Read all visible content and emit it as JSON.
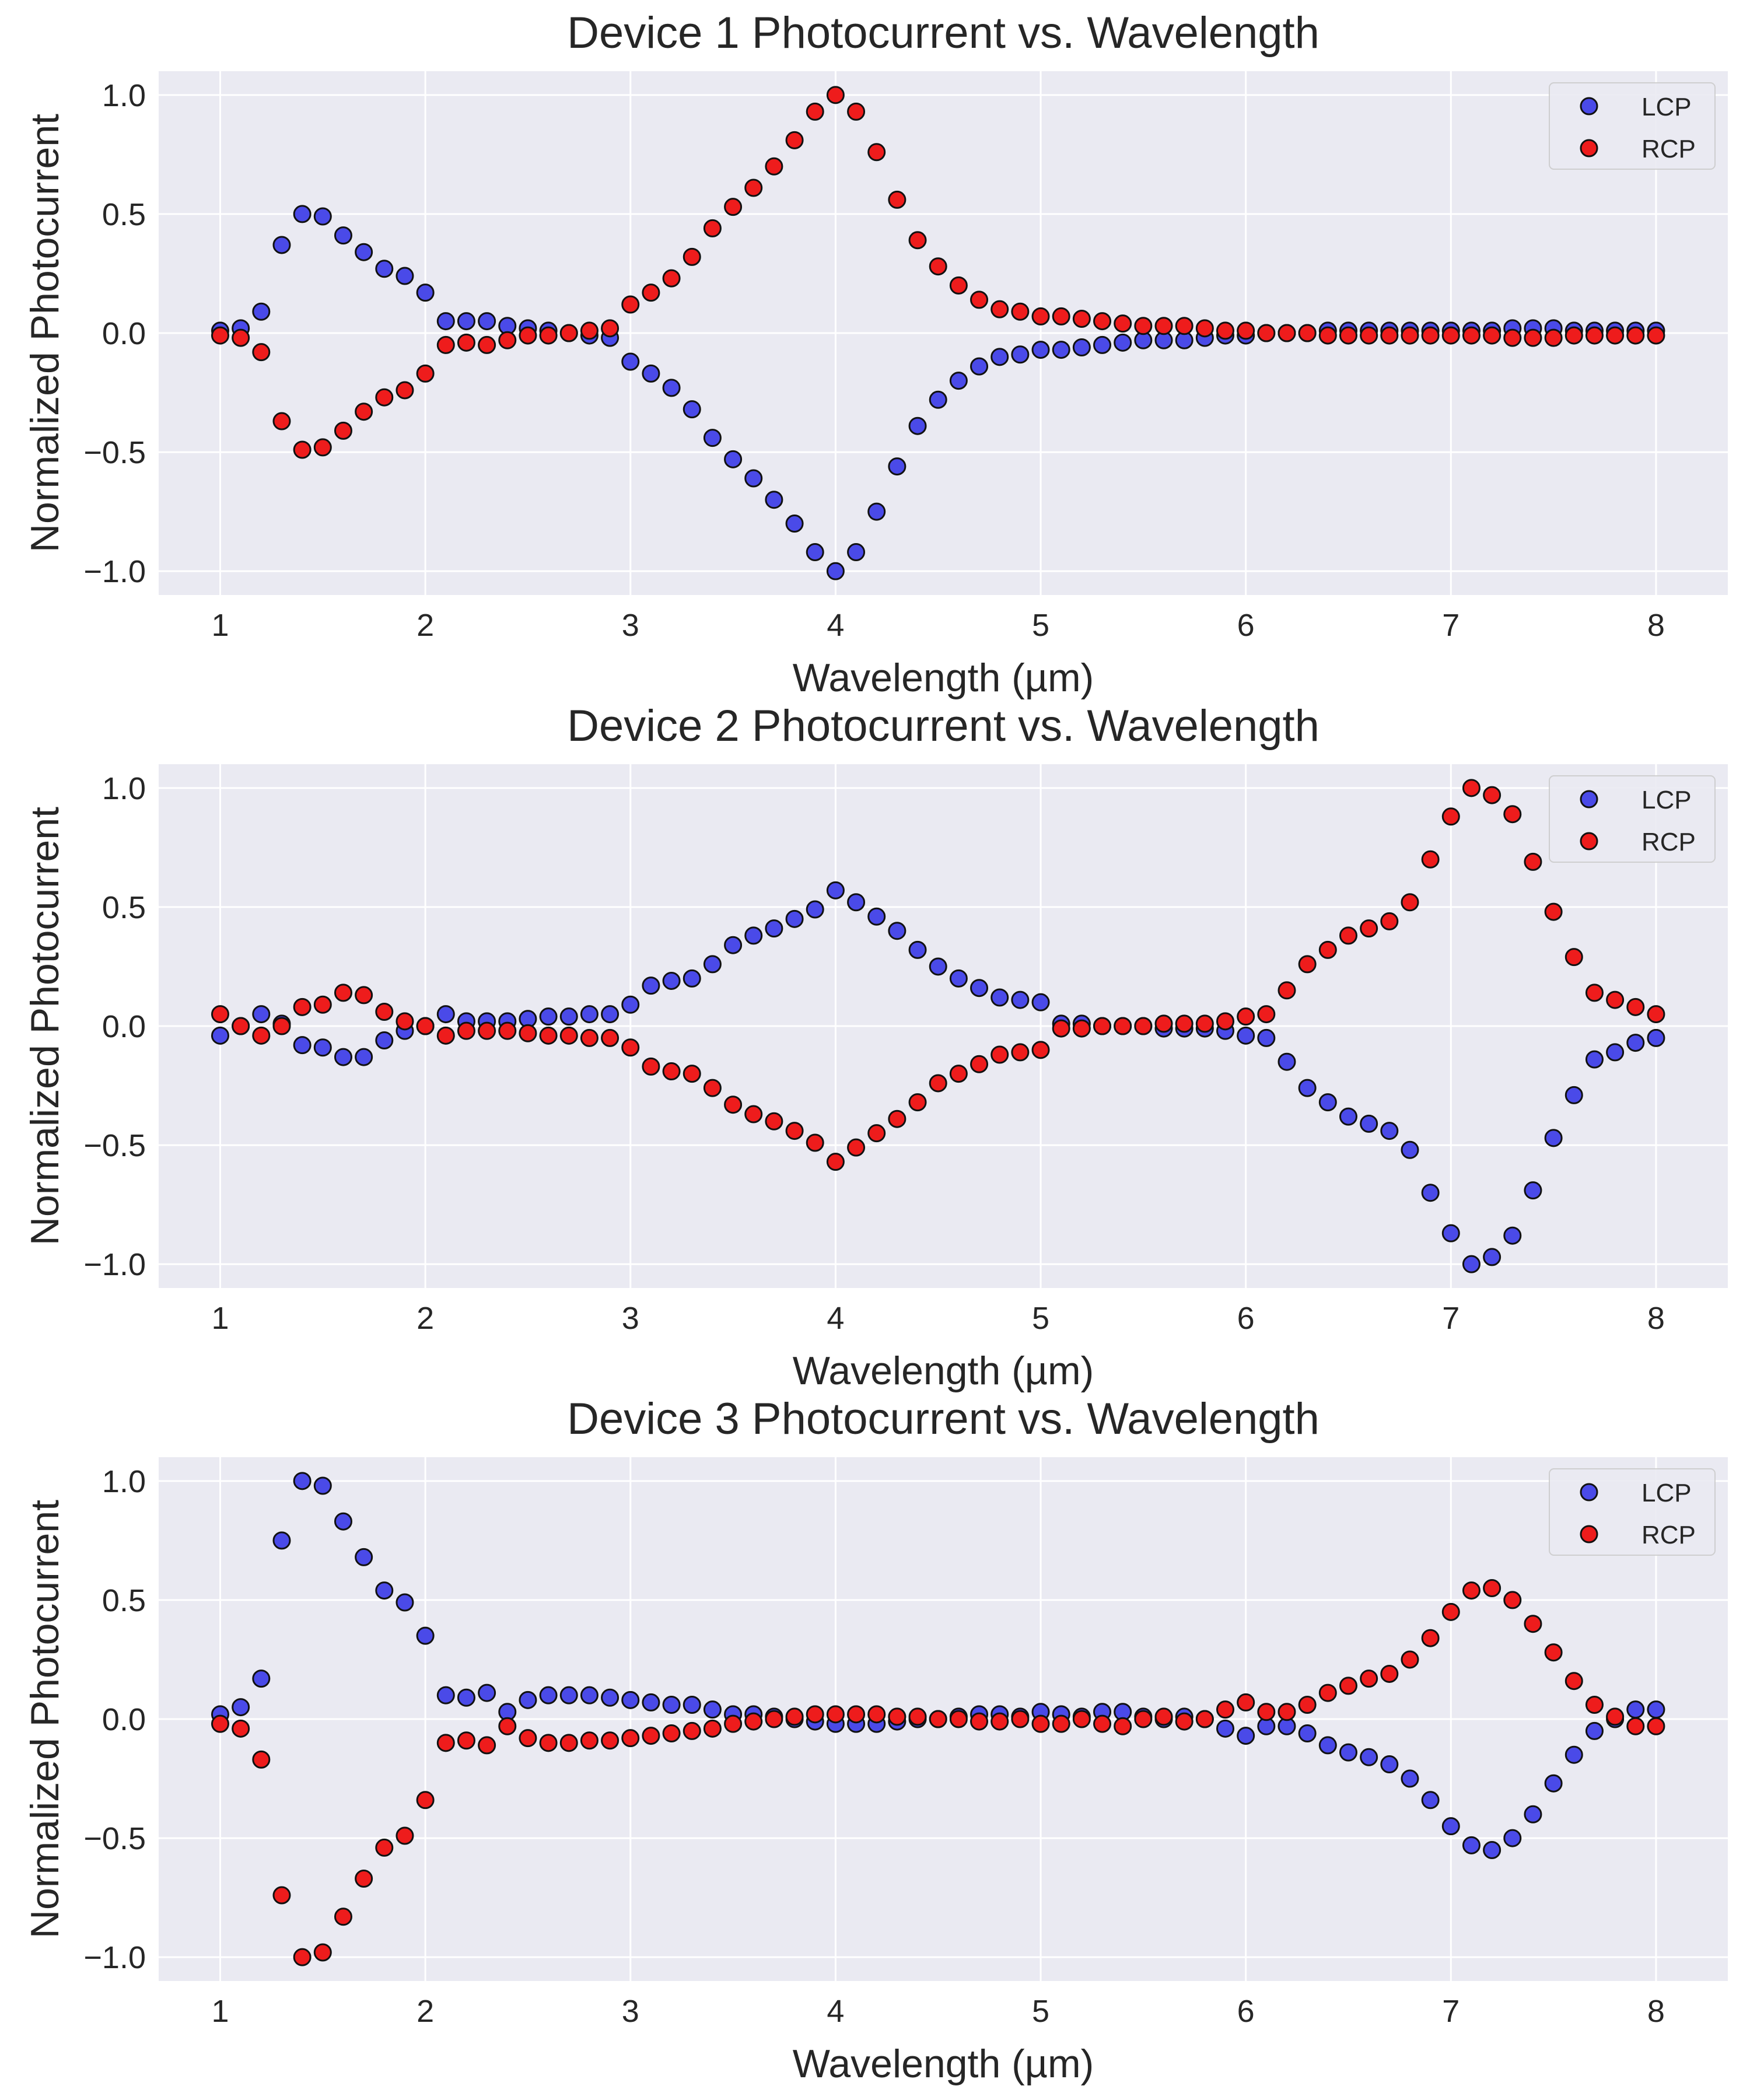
{
  "chart_data": [
    {
      "type": "scatter",
      "title": "Device 1 Photocurrent vs. Wavelength",
      "xlabel": "Wavelength (µm)",
      "ylabel": "Normalized Photocurrent",
      "xlim": [
        0.7,
        8.35
      ],
      "ylim": [
        -1.1,
        1.1
      ],
      "xticks": [
        1,
        2,
        3,
        4,
        5,
        6,
        7,
        8
      ],
      "yticks": [
        -1.0,
        -0.5,
        0.0,
        0.5,
        1.0
      ],
      "xtick_labels": [
        "1",
        "2",
        "3",
        "4",
        "5",
        "6",
        "7",
        "8"
      ],
      "ytick_labels": [
        "−1.0",
        "−0.5",
        "0.0",
        "0.5",
        "1.0"
      ],
      "grid": true,
      "legend": "top-right",
      "x": [
        1.0,
        1.1,
        1.2,
        1.3,
        1.4,
        1.5,
        1.6,
        1.7,
        1.8,
        1.9,
        2.0,
        2.1,
        2.2,
        2.3,
        2.4,
        2.5,
        2.6,
        2.7,
        2.8,
        2.9,
        3.0,
        3.1,
        3.2,
        3.3,
        3.4,
        3.5,
        3.6,
        3.7,
        3.8,
        3.9,
        4.0,
        4.1,
        4.2,
        4.3,
        4.4,
        4.5,
        4.6,
        4.7,
        4.8,
        4.9,
        5.0,
        5.1,
        5.2,
        5.3,
        5.4,
        5.5,
        5.6,
        5.7,
        5.8,
        5.9,
        6.0,
        6.1,
        6.2,
        6.3,
        6.4,
        6.5,
        6.6,
        6.7,
        6.8,
        6.9,
        7.0,
        7.1,
        7.2,
        7.3,
        7.4,
        7.5,
        7.6,
        7.7,
        7.8,
        7.9,
        8.0
      ],
      "series": [
        {
          "name": "LCP",
          "color": "#4a4ae8",
          "values": [
            0.01,
            0.02,
            0.09,
            0.37,
            0.5,
            0.49,
            0.41,
            0.34,
            0.27,
            0.24,
            0.17,
            0.05,
            0.05,
            0.05,
            0.03,
            0.02,
            0.01,
            0.0,
            -0.01,
            -0.02,
            -0.12,
            -0.17,
            -0.23,
            -0.32,
            -0.44,
            -0.53,
            -0.61,
            -0.7,
            -0.8,
            -0.92,
            -1.0,
            -0.92,
            -0.75,
            -0.56,
            -0.39,
            -0.28,
            -0.2,
            -0.14,
            -0.1,
            -0.09,
            -0.07,
            -0.07,
            -0.06,
            -0.05,
            -0.04,
            -0.03,
            -0.03,
            -0.03,
            -0.02,
            -0.01,
            -0.01,
            0.0,
            0.0,
            0.0,
            0.01,
            0.01,
            0.01,
            0.01,
            0.01,
            0.01,
            0.01,
            0.01,
            0.01,
            0.02,
            0.02,
            0.02,
            0.01,
            0.01,
            0.01,
            0.01,
            0.01
          ]
        },
        {
          "name": "RCP",
          "color": "#ee1c1c",
          "values": [
            -0.01,
            -0.02,
            -0.08,
            -0.37,
            -0.49,
            -0.48,
            -0.41,
            -0.33,
            -0.27,
            -0.24,
            -0.17,
            -0.05,
            -0.04,
            -0.05,
            -0.03,
            -0.01,
            -0.01,
            0.0,
            0.01,
            0.02,
            0.12,
            0.17,
            0.23,
            0.32,
            0.44,
            0.53,
            0.61,
            0.7,
            0.81,
            0.93,
            1.0,
            0.93,
            0.76,
            0.56,
            0.39,
            0.28,
            0.2,
            0.14,
            0.1,
            0.09,
            0.07,
            0.07,
            0.06,
            0.05,
            0.04,
            0.03,
            0.03,
            0.03,
            0.02,
            0.01,
            0.01,
            0.0,
            0.0,
            0.0,
            -0.01,
            -0.01,
            -0.01,
            -0.01,
            -0.01,
            -0.01,
            -0.01,
            -0.01,
            -0.01,
            -0.02,
            -0.02,
            -0.02,
            -0.01,
            -0.01,
            -0.01,
            -0.01,
            -0.01
          ]
        }
      ]
    },
    {
      "type": "scatter",
      "title": "Device 2 Photocurrent vs. Wavelength",
      "xlabel": "Wavelength (µm)",
      "ylabel": "Normalized Photocurrent",
      "xlim": [
        0.7,
        8.35
      ],
      "ylim": [
        -1.1,
        1.1
      ],
      "xticks": [
        1,
        2,
        3,
        4,
        5,
        6,
        7,
        8
      ],
      "yticks": [
        -1.0,
        -0.5,
        0.0,
        0.5,
        1.0
      ],
      "xtick_labels": [
        "1",
        "2",
        "3",
        "4",
        "5",
        "6",
        "7",
        "8"
      ],
      "ytick_labels": [
        "−1.0",
        "−0.5",
        "0.0",
        "0.5",
        "1.0"
      ],
      "grid": true,
      "legend": "top-right",
      "x": [
        1.0,
        1.1,
        1.2,
        1.3,
        1.4,
        1.5,
        1.6,
        1.7,
        1.8,
        1.9,
        2.0,
        2.1,
        2.2,
        2.3,
        2.4,
        2.5,
        2.6,
        2.7,
        2.8,
        2.9,
        3.0,
        3.1,
        3.2,
        3.3,
        3.4,
        3.5,
        3.6,
        3.7,
        3.8,
        3.9,
        4.0,
        4.1,
        4.2,
        4.3,
        4.4,
        4.5,
        4.6,
        4.7,
        4.8,
        4.9,
        5.0,
        5.1,
        5.2,
        5.3,
        5.4,
        5.5,
        5.6,
        5.7,
        5.8,
        5.9,
        6.0,
        6.1,
        6.2,
        6.3,
        6.4,
        6.5,
        6.6,
        6.7,
        6.8,
        6.9,
        7.0,
        7.1,
        7.2,
        7.3,
        7.4,
        7.5,
        7.6,
        7.7,
        7.8,
        7.9,
        8.0
      ],
      "series": [
        {
          "name": "LCP",
          "color": "#4a4ae8",
          "values": [
            -0.04,
            0.0,
            0.05,
            0.01,
            -0.08,
            -0.09,
            -0.13,
            -0.13,
            -0.06,
            -0.02,
            0.0,
            0.05,
            0.02,
            0.02,
            0.02,
            0.03,
            0.04,
            0.04,
            0.05,
            0.05,
            0.09,
            0.17,
            0.19,
            0.2,
            0.26,
            0.34,
            0.38,
            0.41,
            0.45,
            0.49,
            0.57,
            0.52,
            0.46,
            0.4,
            0.32,
            0.25,
            0.2,
            0.16,
            0.12,
            0.11,
            0.1,
            0.01,
            0.01,
            0.0,
            0.0,
            0.0,
            -0.01,
            -0.01,
            -0.01,
            -0.02,
            -0.04,
            -0.05,
            -0.15,
            -0.26,
            -0.32,
            -0.38,
            -0.41,
            -0.44,
            -0.52,
            -0.7,
            -0.87,
            -1.0,
            -0.97,
            -0.88,
            -0.69,
            -0.47,
            -0.29,
            -0.14,
            -0.11,
            -0.07,
            -0.05
          ]
        },
        {
          "name": "RCP",
          "color": "#ee1c1c",
          "values": [
            0.05,
            0.0,
            -0.04,
            0.0,
            0.08,
            0.09,
            0.14,
            0.13,
            0.06,
            0.02,
            0.0,
            -0.04,
            -0.02,
            -0.02,
            -0.02,
            -0.03,
            -0.04,
            -0.04,
            -0.05,
            -0.05,
            -0.09,
            -0.17,
            -0.19,
            -0.2,
            -0.26,
            -0.33,
            -0.37,
            -0.4,
            -0.44,
            -0.49,
            -0.57,
            -0.51,
            -0.45,
            -0.39,
            -0.32,
            -0.24,
            -0.2,
            -0.16,
            -0.12,
            -0.11,
            -0.1,
            -0.01,
            -0.01,
            0.0,
            0.0,
            0.0,
            0.01,
            0.01,
            0.01,
            0.02,
            0.04,
            0.05,
            0.15,
            0.26,
            0.32,
            0.38,
            0.41,
            0.44,
            0.52,
            0.7,
            0.88,
            1.0,
            0.97,
            0.89,
            0.69,
            0.48,
            0.29,
            0.14,
            0.11,
            0.08,
            0.05
          ]
        }
      ]
    },
    {
      "type": "scatter",
      "title": "Device 3 Photocurrent vs. Wavelength",
      "xlabel": "Wavelength (µm)",
      "ylabel": "Normalized Photocurrent",
      "xlim": [
        0.7,
        8.35
      ],
      "ylim": [
        -1.1,
        1.1
      ],
      "xticks": [
        1,
        2,
        3,
        4,
        5,
        6,
        7,
        8
      ],
      "yticks": [
        -1.0,
        -0.5,
        0.0,
        0.5,
        1.0
      ],
      "xtick_labels": [
        "1",
        "2",
        "3",
        "4",
        "5",
        "6",
        "7",
        "8"
      ],
      "ytick_labels": [
        "−1.0",
        "−0.5",
        "0.0",
        "0.5",
        "1.0"
      ],
      "grid": true,
      "legend": "top-right",
      "x": [
        1.0,
        1.1,
        1.2,
        1.3,
        1.4,
        1.5,
        1.6,
        1.7,
        1.8,
        1.9,
        2.0,
        2.1,
        2.2,
        2.3,
        2.4,
        2.5,
        2.6,
        2.7,
        2.8,
        2.9,
        3.0,
        3.1,
        3.2,
        3.3,
        3.4,
        3.5,
        3.6,
        3.7,
        3.8,
        3.9,
        4.0,
        4.1,
        4.2,
        4.3,
        4.4,
        4.5,
        4.6,
        4.7,
        4.8,
        4.9,
        5.0,
        5.1,
        5.2,
        5.3,
        5.4,
        5.5,
        5.6,
        5.7,
        5.8,
        5.9,
        6.0,
        6.1,
        6.2,
        6.3,
        6.4,
        6.5,
        6.6,
        6.7,
        6.8,
        6.9,
        7.0,
        7.1,
        7.2,
        7.3,
        7.4,
        7.5,
        7.6,
        7.7,
        7.8,
        7.9,
        8.0
      ],
      "series": [
        {
          "name": "LCP",
          "color": "#4a4ae8",
          "values": [
            0.02,
            0.05,
            0.17,
            0.75,
            1.0,
            0.98,
            0.83,
            0.68,
            0.54,
            0.49,
            0.35,
            0.1,
            0.09,
            0.11,
            0.03,
            0.08,
            0.1,
            0.1,
            0.1,
            0.09,
            0.08,
            0.07,
            0.06,
            0.06,
            0.04,
            0.02,
            0.02,
            0.01,
            0.0,
            -0.01,
            -0.02,
            -0.02,
            -0.02,
            -0.01,
            0.0,
            0.0,
            0.01,
            0.02,
            0.02,
            0.01,
            0.03,
            0.02,
            0.01,
            0.03,
            0.03,
            0.01,
            0.0,
            0.01,
            0.0,
            -0.04,
            -0.07,
            -0.03,
            -0.03,
            -0.06,
            -0.11,
            -0.14,
            -0.16,
            -0.19,
            -0.25,
            -0.34,
            -0.45,
            -0.53,
            -0.55,
            -0.5,
            -0.4,
            -0.27,
            -0.15,
            -0.05,
            0.0,
            0.04,
            0.04
          ]
        },
        {
          "name": "RCP",
          "color": "#ee1c1c",
          "values": [
            -0.02,
            -0.04,
            -0.17,
            -0.74,
            -1.0,
            -0.98,
            -0.83,
            -0.67,
            -0.54,
            -0.49,
            -0.34,
            -0.1,
            -0.09,
            -0.11,
            -0.03,
            -0.08,
            -0.1,
            -0.1,
            -0.09,
            -0.09,
            -0.08,
            -0.07,
            -0.06,
            -0.05,
            -0.04,
            -0.02,
            -0.01,
            0.0,
            0.01,
            0.02,
            0.02,
            0.02,
            0.02,
            0.01,
            0.01,
            0.0,
            0.0,
            -0.01,
            -0.01,
            0.0,
            -0.02,
            -0.02,
            0.0,
            -0.02,
            -0.03,
            0.0,
            0.01,
            -0.01,
            0.0,
            0.04,
            0.07,
            0.03,
            0.03,
            0.06,
            0.11,
            0.14,
            0.17,
            0.19,
            0.25,
            0.34,
            0.45,
            0.54,
            0.55,
            0.5,
            0.4,
            0.28,
            0.16,
            0.06,
            0.01,
            -0.03,
            -0.03
          ]
        }
      ]
    }
  ]
}
